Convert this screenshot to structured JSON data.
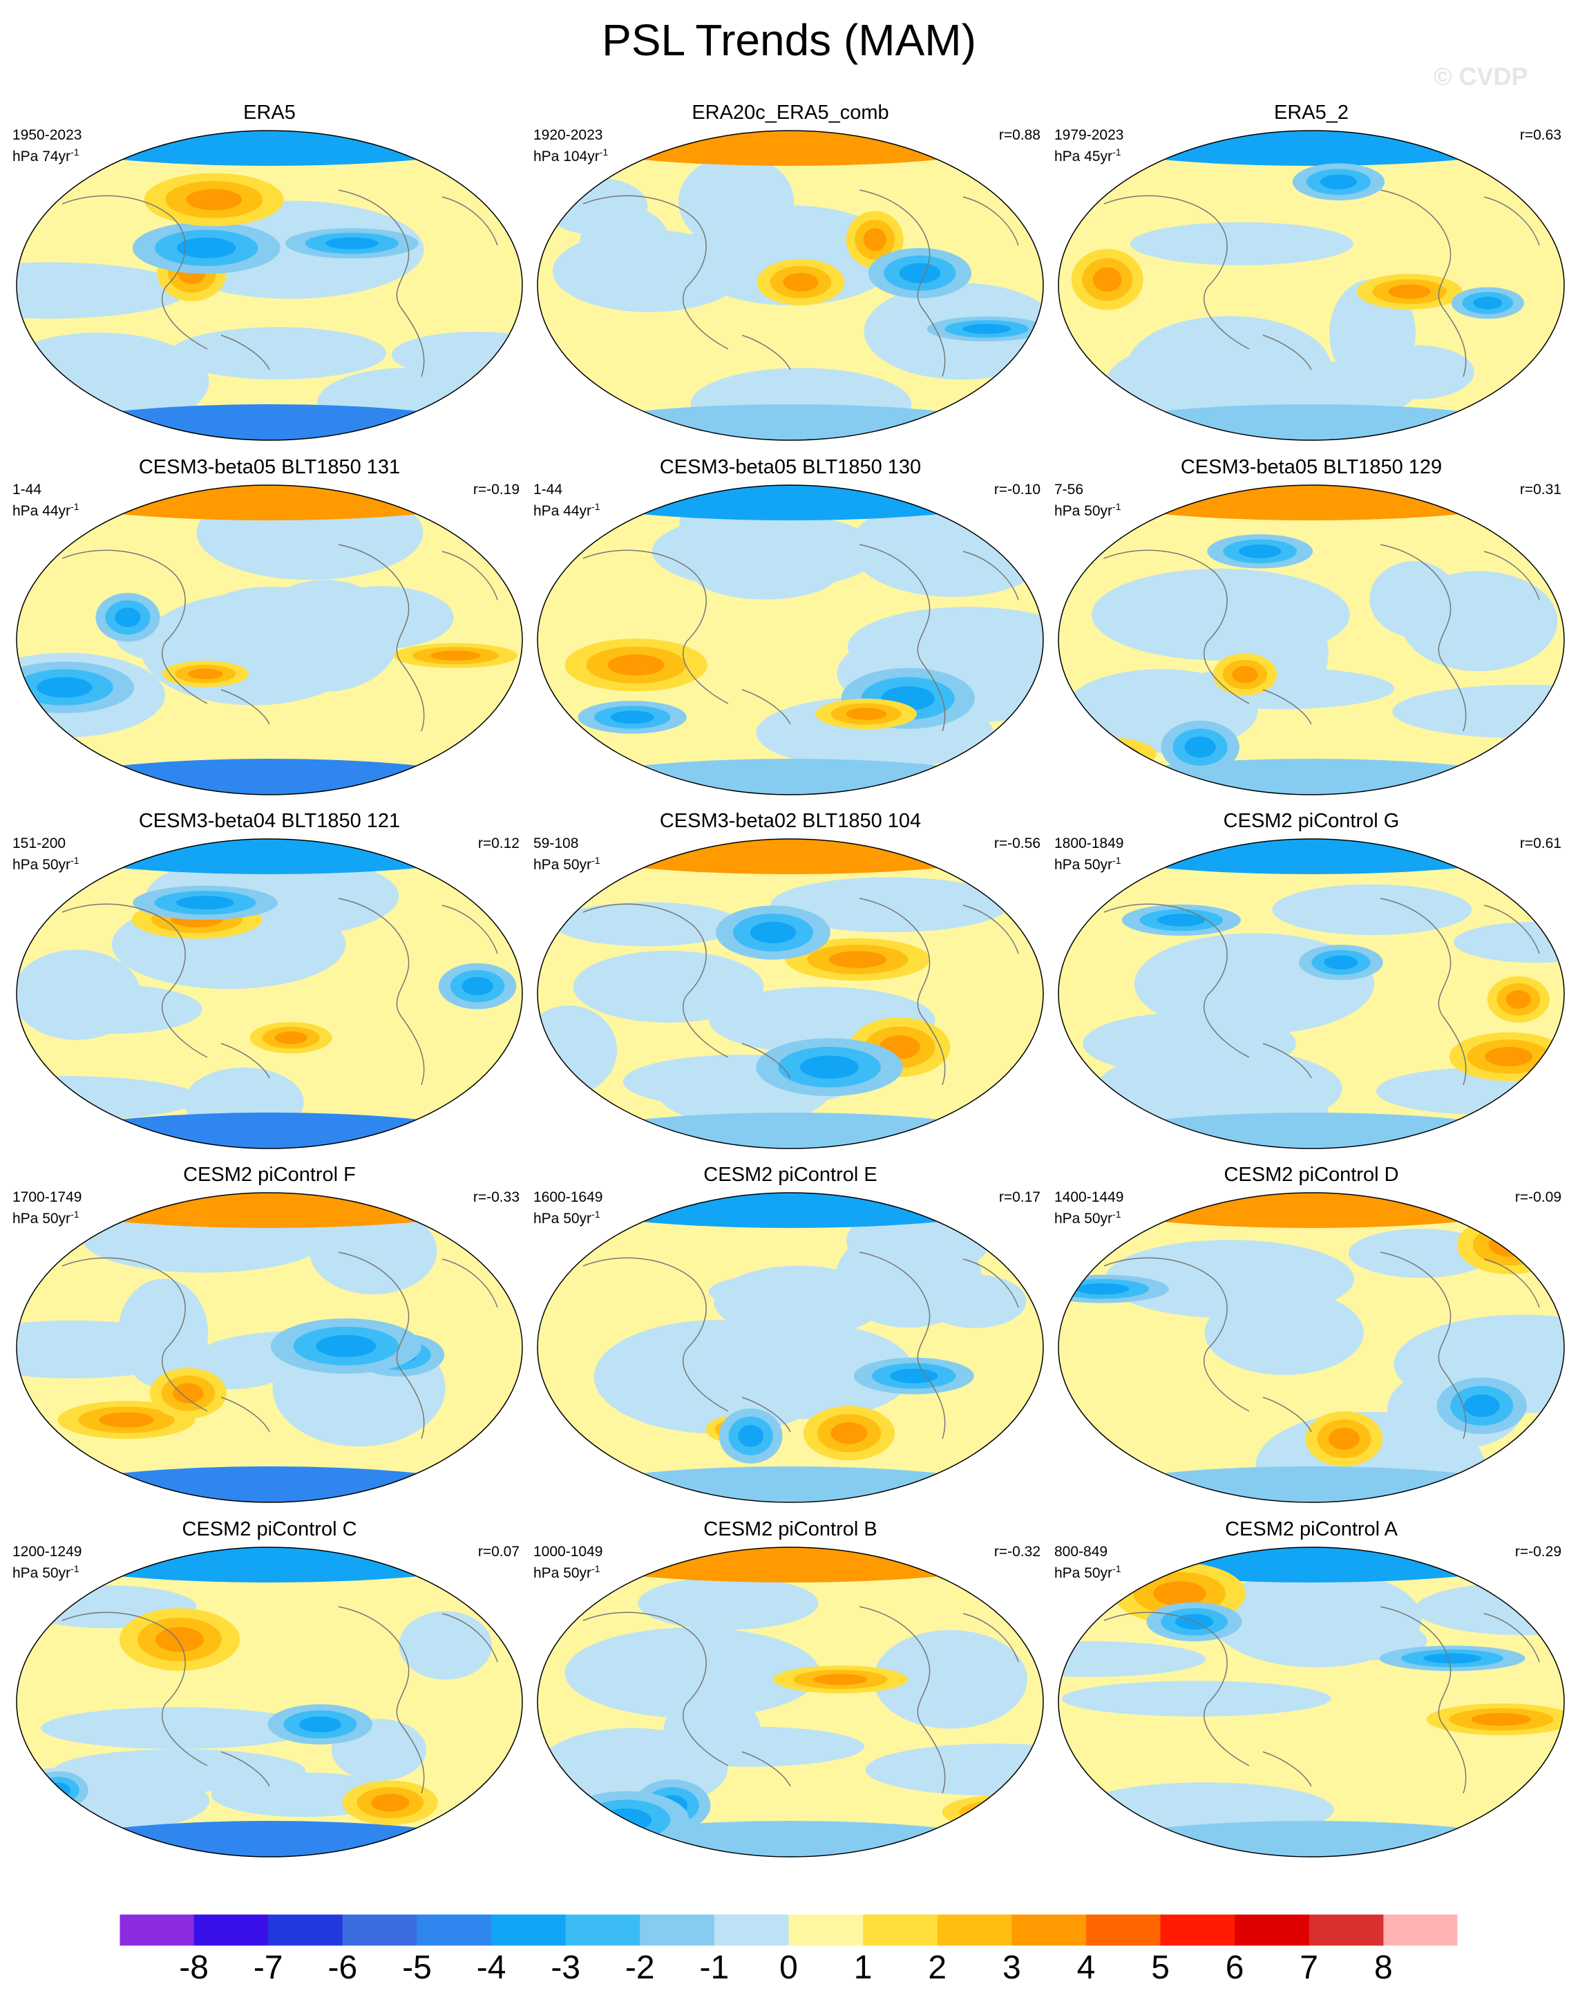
{
  "title": "PSL Trends (MAM)",
  "watermark": "© CVDP",
  "chart_data": {
    "type": "heatmap",
    "projection": "robinson-global-map",
    "variable": "PSL trend",
    "panels": [
      {
        "title": "ERA5",
        "period": "1950-2023",
        "units": "hPa 74yr",
        "r": ""
      },
      {
        "title": "ERA20c_ERA5_comb",
        "period": "1920-2023",
        "units": "hPa 104yr",
        "r": "r=0.88"
      },
      {
        "title": "ERA5_2",
        "period": "1979-2023",
        "units": "hPa 45yr",
        "r": "r=0.63"
      },
      {
        "title": "CESM3-beta05 BLT1850 131",
        "period": "1-44",
        "units": "hPa 44yr",
        "r": "r=-0.19"
      },
      {
        "title": "CESM3-beta05 BLT1850 130",
        "period": "1-44",
        "units": "hPa 44yr",
        "r": "r=-0.10"
      },
      {
        "title": "CESM3-beta05 BLT1850 129",
        "period": "7-56",
        "units": "hPa 50yr",
        "r": "r=0.31"
      },
      {
        "title": "CESM3-beta04 BLT1850 121",
        "period": "151-200",
        "units": "hPa 50yr",
        "r": "r=0.12"
      },
      {
        "title": "CESM3-beta02 BLT1850 104",
        "period": "59-108",
        "units": "hPa 50yr",
        "r": "r=-0.56"
      },
      {
        "title": "CESM2 piControl G",
        "period": "1800-1849",
        "units": "hPa 50yr",
        "r": "r=0.61"
      },
      {
        "title": "CESM2 piControl F",
        "period": "1700-1749",
        "units": "hPa 50yr",
        "r": "r=-0.33"
      },
      {
        "title": "CESM2 piControl E",
        "period": "1600-1649",
        "units": "hPa 50yr",
        "r": "r=0.17"
      },
      {
        "title": "CESM2 piControl D",
        "period": "1400-1449",
        "units": "hPa 50yr",
        "r": "r=-0.09"
      },
      {
        "title": "CESM2 piControl C",
        "period": "1200-1249",
        "units": "hPa 50yr",
        "r": "r=0.07"
      },
      {
        "title": "CESM2 piControl B",
        "period": "1000-1049",
        "units": "hPa 50yr",
        "r": "r=-0.32"
      },
      {
        "title": "CESM2 piControl A",
        "period": "800-849",
        "units": "hPa 50yr",
        "r": "r=-0.29"
      }
    ],
    "colorbar": {
      "ticks": [
        "-8",
        "-7",
        "-6",
        "-5",
        "-4",
        "-3",
        "-2",
        "-1",
        "0",
        "1",
        "2",
        "3",
        "4",
        "5",
        "6",
        "7",
        "8"
      ],
      "colors": [
        "#8a2be2",
        "#3a10ea",
        "#2339e0",
        "#3b6de0",
        "#2f86ee",
        "#12a5f5",
        "#3cbcf6",
        "#86ccf0",
        "#bde2f5",
        "#fff7a0",
        "#ffde3c",
        "#ffbf12",
        "#ff9a00",
        "#ff6600",
        "#ff1a00",
        "#df0000",
        "#d93030",
        "#ffb3b3"
      ]
    }
  }
}
